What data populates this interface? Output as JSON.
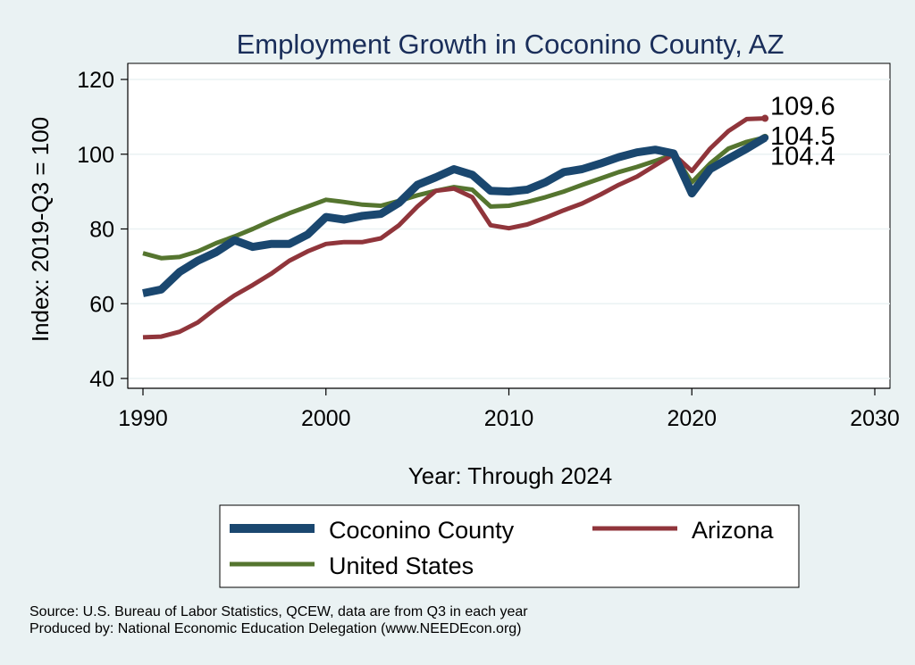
{
  "chart_data": {
    "type": "line",
    "title": "Employment Growth in Coconino County, AZ",
    "xlabel": "Year: Through 2024",
    "ylabel": "Index: 2019-Q3 = 100",
    "xlim": [
      1990,
      2030
    ],
    "ylim": [
      40,
      120
    ],
    "x_ticks": [
      1990,
      2000,
      2010,
      2020,
      2030
    ],
    "y_ticks": [
      40,
      60,
      80,
      100,
      120
    ],
    "grid": true,
    "legend_position": "bottom",
    "x": [
      1990,
      1991,
      1992,
      1993,
      1994,
      1995,
      1996,
      1997,
      1998,
      1999,
      2000,
      2001,
      2002,
      2003,
      2004,
      2005,
      2006,
      2007,
      2008,
      2009,
      2010,
      2011,
      2012,
      2013,
      2014,
      2015,
      2016,
      2017,
      2018,
      2019,
      2020,
      2021,
      2022,
      2023,
      2024
    ],
    "series": [
      {
        "name": "Coconino  County",
        "color": "#1a476f",
        "values": [
          62.8,
          63.8,
          68.5,
          71.5,
          73.8,
          77.0,
          75.2,
          76.0,
          76.0,
          78.5,
          83.2,
          82.5,
          83.5,
          84.0,
          87.0,
          91.8,
          93.8,
          96.0,
          94.5,
          90.2,
          90.0,
          90.5,
          92.5,
          95.2,
          96.0,
          97.5,
          99.2,
          100.5,
          101.2,
          100.2,
          89.5,
          96.0,
          98.8,
          101.5,
          104.4
        ]
      },
      {
        "name": "Arizona",
        "color": "#90353b",
        "values": [
          51.0,
          51.2,
          52.5,
          55.0,
          58.8,
          62.2,
          65.0,
          68.0,
          71.5,
          74.0,
          76.0,
          76.5,
          76.5,
          77.5,
          81.0,
          86.0,
          90.2,
          90.8,
          88.5,
          81.0,
          80.2,
          81.2,
          83.0,
          85.0,
          86.8,
          89.2,
          91.8,
          94.0,
          97.0,
          100.0,
          95.5,
          101.5,
          106.2,
          109.4,
          109.6
        ]
      },
      {
        "name": "United States",
        "color": "#55752f",
        "values": [
          73.5,
          72.2,
          72.5,
          74.0,
          76.2,
          78.0,
          80.0,
          82.2,
          84.2,
          86.0,
          87.8,
          87.2,
          86.5,
          86.2,
          87.5,
          89.0,
          90.2,
          91.2,
          90.5,
          86.0,
          86.2,
          87.2,
          88.5,
          90.0,
          91.8,
          93.5,
          95.2,
          96.6,
          98.2,
          100.0,
          92.5,
          97.5,
          101.5,
          103.3,
          104.5
        ]
      }
    ],
    "end_labels": [
      "109.6",
      "104.5",
      "104.4"
    ],
    "source_lines": [
      "Source: U.S. Bureau of Labor Statistics, QCEW, data are from Q3 in each year",
      "Produced by: National Economic Education Delegation (www.NEEDEcon.org)"
    ]
  }
}
